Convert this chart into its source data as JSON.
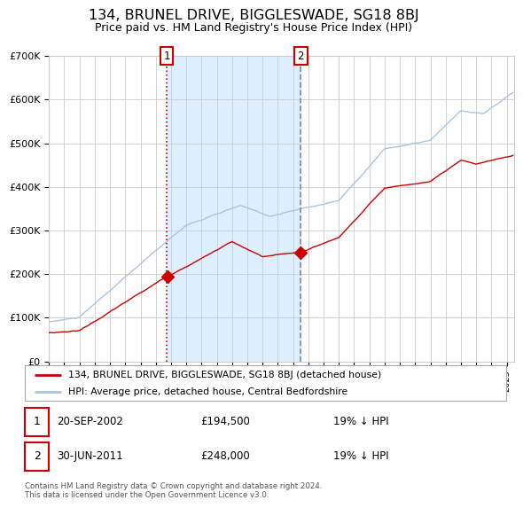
{
  "title": "134, BRUNEL DRIVE, BIGGLESWADE, SG18 8BJ",
  "subtitle": "Price paid vs. HM Land Registry's House Price Index (HPI)",
  "title_fontsize": 11.5,
  "subtitle_fontsize": 9,
  "ylim": [
    0,
    700000
  ],
  "yticks": [
    0,
    100000,
    200000,
    300000,
    400000,
    500000,
    600000,
    700000
  ],
  "ytick_labels": [
    "£0",
    "£100K",
    "£200K",
    "£300K",
    "£400K",
    "£500K",
    "£600K",
    "£700K"
  ],
  "sale1_date_num": 2002.72,
  "sale1_price": 194500,
  "sale1_label": "1",
  "sale1_date_str": "20-SEP-2002",
  "sale1_amount": "£194,500",
  "sale1_hpi": "19% ↓ HPI",
  "sale2_date_num": 2011.5,
  "sale2_price": 248000,
  "sale2_label": "2",
  "sale2_date_str": "30-JUN-2011",
  "sale2_amount": "£248,000",
  "sale2_hpi": "19% ↓ HPI",
  "hpi_line_color": "#aac4e0",
  "price_line_color": "#cc0000",
  "shade_color": "#ddeeff",
  "grid_color": "#cccccc",
  "background_color": "#ffffff",
  "legend_label_price": "134, BRUNEL DRIVE, BIGGLESWADE, SG18 8BJ (detached house)",
  "legend_label_hpi": "HPI: Average price, detached house, Central Bedfordshire",
  "footer_text": "Contains HM Land Registry data © Crown copyright and database right 2024.\nThis data is licensed under the Open Government Licence v3.0.",
  "xmin": 1995,
  "xmax": 2025.5
}
